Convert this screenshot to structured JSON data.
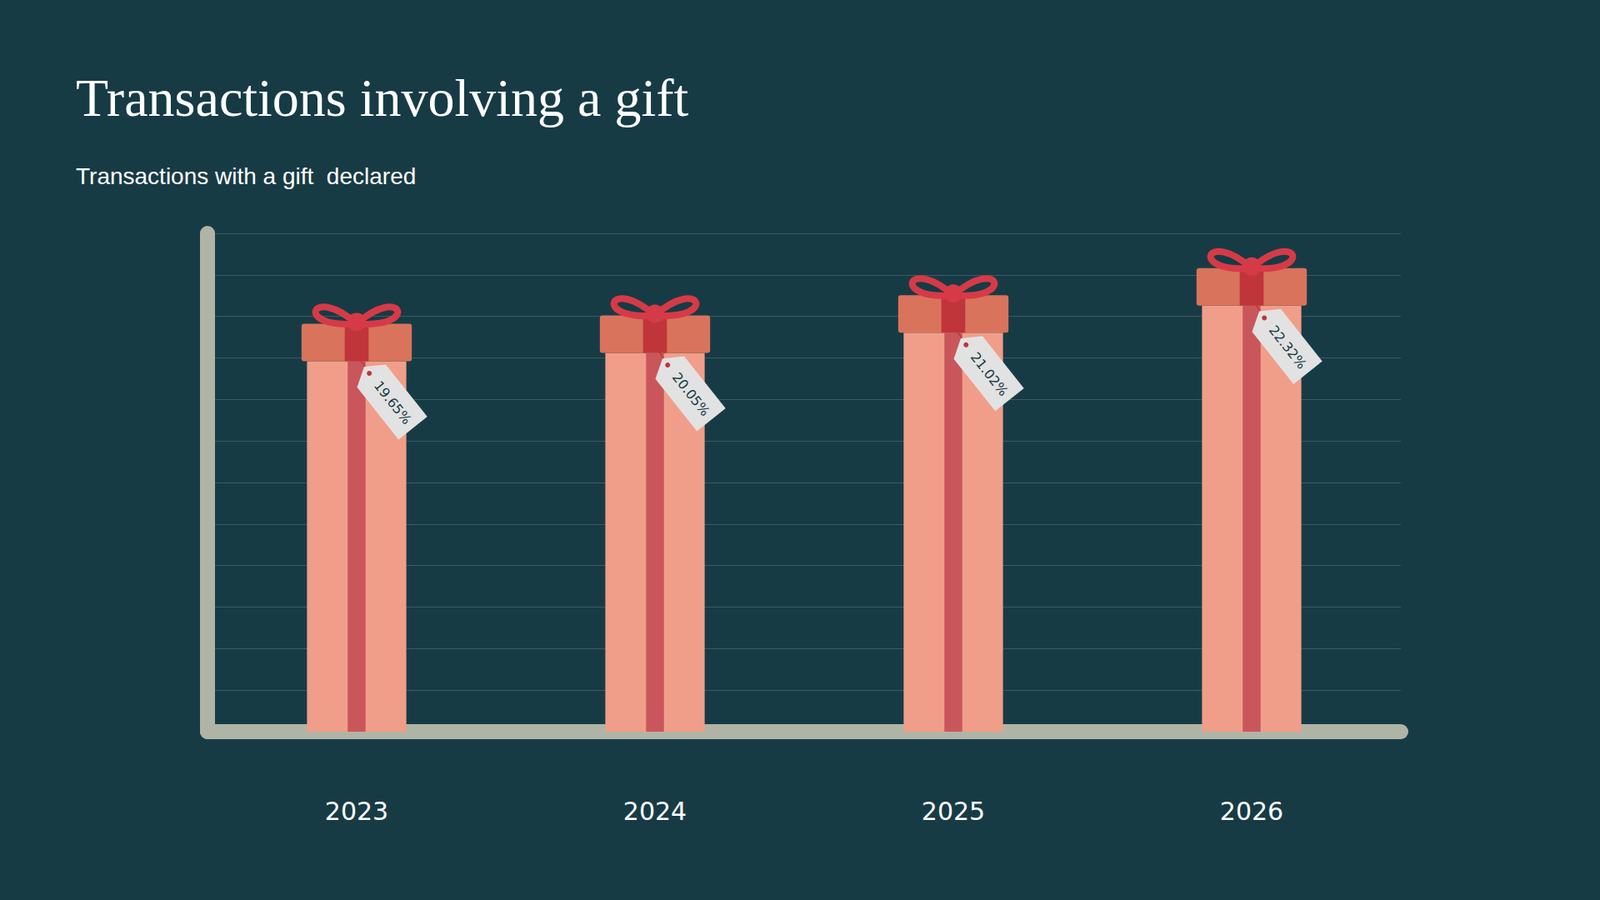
{
  "chart_data": {
    "type": "bar",
    "title": "Transactions involving a gift",
    "subtitle": "Transactions with a gift  declared",
    "categories": [
      "2023",
      "2024",
      "2025",
      "2026"
    ],
    "values": [
      19.65,
      20.05,
      21.02,
      22.32
    ],
    "value_labels": [
      "19.65%",
      "20.05%",
      "21.02%",
      "22.32%"
    ],
    "color": "#f09e8a",
    "ylim": [
      0,
      24
    ],
    "yticks": [
      0,
      2,
      4,
      6,
      8,
      10,
      12,
      14,
      16,
      18,
      20,
      22,
      24
    ],
    "grid": true,
    "data_labels": true,
    "tick_labels": "x"
  }
}
